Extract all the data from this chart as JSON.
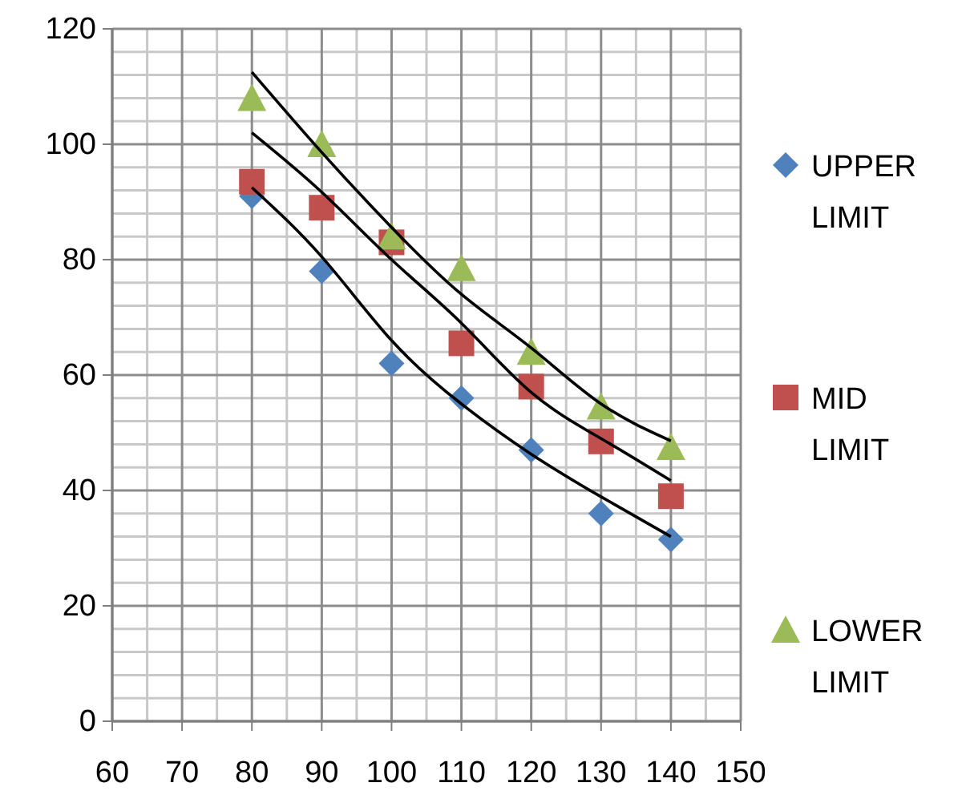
{
  "chart_data": {
    "type": "scatter",
    "xlim": [
      60,
      150
    ],
    "ylim": [
      0,
      120
    ],
    "xticks": [
      60,
      70,
      80,
      90,
      100,
      110,
      120,
      130,
      140,
      150
    ],
    "yticks": [
      0,
      20,
      40,
      60,
      80,
      100,
      120
    ],
    "grid": true,
    "legend": "right",
    "series": [
      {
        "name": "UPPER LIMIT",
        "color": "#4f81bd",
        "marker": "diamond",
        "x": [
          80,
          90,
          100,
          110,
          120,
          130,
          140
        ],
        "values": [
          91,
          78,
          62,
          56,
          47,
          36,
          31.5
        ]
      },
      {
        "name": "MID LIMIT",
        "color": "#c0504d",
        "marker": "square",
        "x": [
          80,
          90,
          100,
          110,
          120,
          130,
          140
        ],
        "values": [
          93.5,
          89,
          83,
          65.5,
          58,
          48.5,
          39
        ]
      },
      {
        "name": "LOWER LIMIT",
        "color": "#9bbb59",
        "marker": "triangle",
        "x": [
          80,
          90,
          100,
          110,
          120,
          130,
          140
        ],
        "values": [
          108,
          100,
          84,
          78.5,
          64,
          54.5,
          47.5
        ]
      },
      {
        "type": "line",
        "color": "#000000",
        "x": [
          80,
          90,
          100,
          110,
          120,
          130,
          140
        ],
        "values": [
          92.5,
          80.5,
          66,
          55,
          46.3,
          38.9,
          32
        ]
      },
      {
        "type": "line",
        "color": "#000000",
        "x": [
          80,
          90,
          100,
          110,
          120,
          130,
          140
        ],
        "values": [
          102,
          91.7,
          80,
          69,
          57,
          49,
          41.7
        ]
      },
      {
        "type": "line",
        "color": "#000000",
        "x": [
          80,
          90,
          100,
          110,
          120,
          130,
          140
        ],
        "values": [
          112.5,
          98.6,
          85.6,
          74,
          64.7,
          55,
          48.6
        ]
      }
    ]
  }
}
